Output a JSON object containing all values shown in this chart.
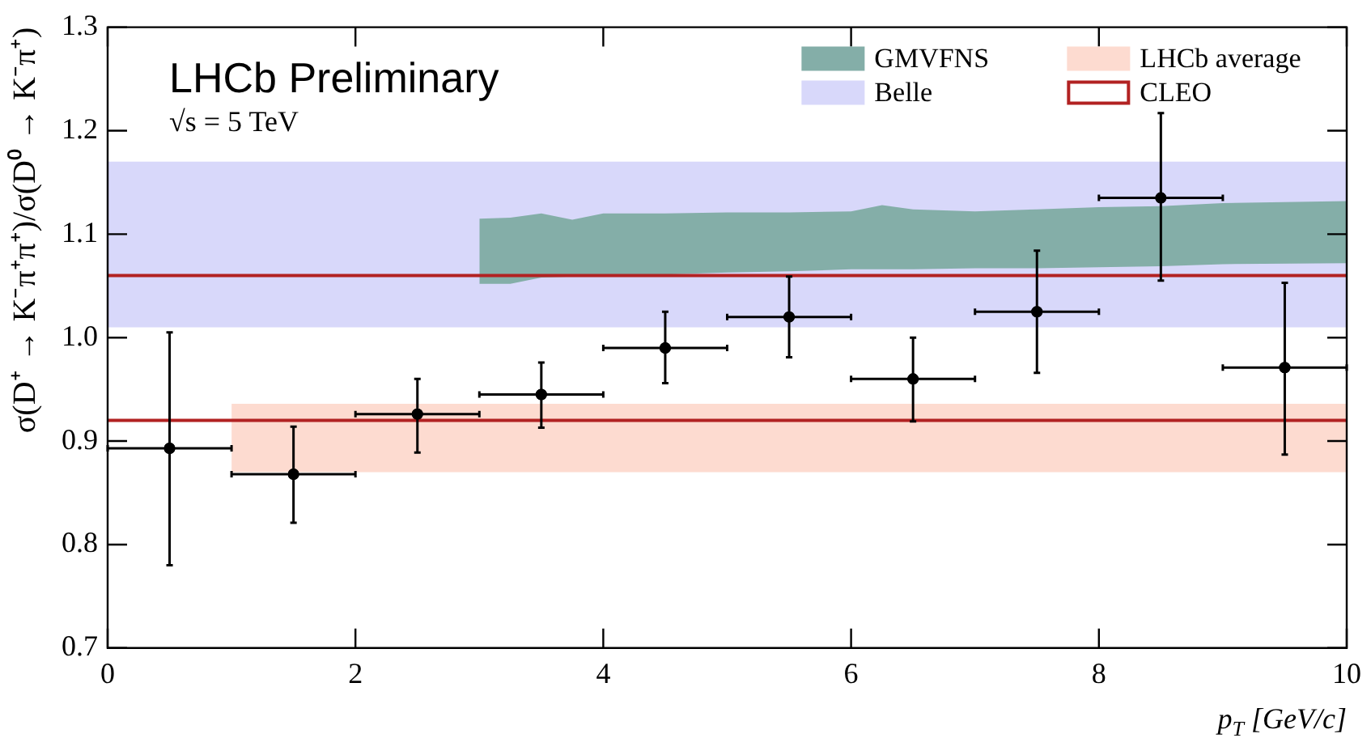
{
  "chart_data": {
    "type": "scatter",
    "xlabel": "p$_{T}$ [GeV/c]",
    "ylabel": "σ(D⁺ → K⁻π⁺π⁺)/σ(D⁰ → K⁻π⁺)",
    "annotations": [
      "LHCb Preliminary",
      "√s = 5 TeV"
    ],
    "xlim": [
      0,
      10
    ],
    "xticks": [
      0,
      2,
      4,
      6,
      8,
      10
    ],
    "ylim": [
      0.7,
      1.3
    ],
    "yticks": [
      0.7,
      0.8,
      0.9,
      {
        "value": 1,
        "label": "1.0"
      },
      1.1,
      1.2,
      1.3
    ],
    "grid": false,
    "legend": "top right",
    "ref_lines": [
      {
        "axis": "y",
        "value": 1.06,
        "label": "CLEO",
        "color": "#b22222"
      },
      {
        "axis": "y",
        "value": 0.92,
        "label": null,
        "color": "#b22222"
      }
    ],
    "series": [
      {
        "name": "GMVFNS",
        "type": "area",
        "color": "#84aea8",
        "x": [
          3,
          3.25,
          3.5,
          3.75,
          4,
          4.5,
          5,
          5.5,
          6,
          6.25,
          6.5,
          7,
          7.5,
          8,
          8.5,
          9,
          10
        ],
        "values": [
          null,
          null,
          null,
          null,
          null,
          null,
          null,
          null,
          null,
          null,
          null,
          null,
          null,
          null,
          null,
          null,
          null
        ],
        "lower": [
          1.052,
          1.052,
          1.058,
          1.059,
          1.06,
          1.061,
          1.063,
          1.064,
          1.066,
          1.066,
          1.066,
          1.067,
          1.067,
          1.068,
          1.069,
          1.071,
          1.072
        ],
        "upper": [
          1.115,
          1.116,
          1.12,
          1.114,
          1.12,
          1.12,
          1.121,
          1.121,
          1.122,
          1.128,
          1.124,
          1.122,
          1.124,
          1.126,
          1.127,
          1.13,
          1.132
        ]
      },
      {
        "name": "Belle",
        "type": "area",
        "color": "#d8d8fa",
        "x": [
          0,
          10
        ],
        "values": [
          null,
          null
        ],
        "lower": [
          1.01,
          1.01
        ],
        "upper": [
          1.17,
          1.17
        ]
      },
      {
        "name": "LHCb average",
        "type": "area",
        "color": "#fddbd0",
        "x": [
          1,
          10
        ],
        "values": [
          null,
          null
        ],
        "lower": [
          0.87,
          0.87
        ],
        "upper": [
          0.936,
          0.936
        ]
      },
      {
        "type": "scatter",
        "color": "#000000",
        "marker": "circle",
        "x": [
          0.5,
          1.5,
          2.5,
          3.5,
          4.5,
          5.5,
          6.5,
          7.5,
          8.5,
          9.5
        ],
        "values": [
          0.893,
          0.868,
          0.926,
          0.945,
          0.99,
          1.02,
          0.96,
          1.025,
          1.135,
          0.971
        ],
        "errors": [
          [
            0.78,
            1.005
          ],
          [
            0.821,
            0.914
          ],
          [
            0.889,
            0.96
          ],
          [
            0.913,
            0.976
          ],
          [
            0.956,
            1.025
          ],
          [
            0.981,
            1.059
          ],
          [
            0.919,
            1.0
          ],
          [
            0.966,
            1.084
          ],
          [
            1.055,
            1.217
          ],
          [
            0.887,
            1.053
          ]
        ],
        "xerrors": [
          0.5,
          0.5,
          0.5,
          0.5,
          0.5,
          0.5,
          0.5,
          0.5,
          0.5,
          0.5
        ]
      }
    ]
  }
}
